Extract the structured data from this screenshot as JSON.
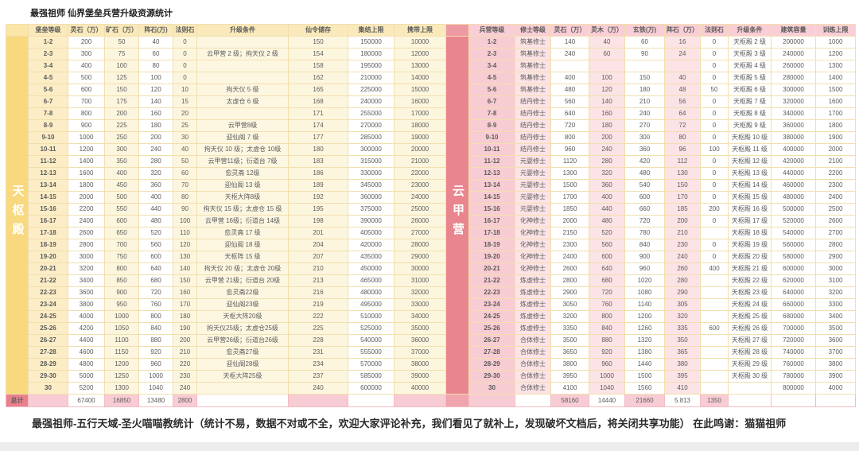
{
  "title": "最强祖师 仙界堡垒兵营升级资源统计",
  "footer": "最强祖师-五行天域-圣火喵喵教统计（统计不易，数据不对或不全，欢迎大家评论补充，我们看见了就补上，发现破坏文档后，将关闭共享功能）  在此鸣谢：猫猫祖师",
  "colors": {
    "fortress_accent": "#f8d97f",
    "fortress_cell": "#fdf6de",
    "camp_accent": "#e9858e",
    "camp_cell": "#fce3e6",
    "total_accent": "#e9818c"
  },
  "fortress": {
    "label": "天枢殿",
    "headers": [
      "堡垒等级",
      "灵石（万）",
      "矿石（万）",
      "阵石(万)",
      "法则石",
      "升级条件",
      "仙令储存",
      "集结上限",
      "携带上限"
    ],
    "rows": [
      [
        "1-2",
        "200",
        "50",
        "40",
        "0",
        "",
        "150",
        "150000",
        "10000"
      ],
      [
        "2-3",
        "300",
        "75",
        "60",
        "0",
        "云甲营 2 级；拘天仪 2 级",
        "154",
        "180000",
        "12000"
      ],
      [
        "3-4",
        "400",
        "100",
        "80",
        "0",
        "",
        "158",
        "195000",
        "13000"
      ],
      [
        "4-5",
        "500",
        "125",
        "100",
        "0",
        "",
        "162",
        "210000",
        "14000"
      ],
      [
        "5-6",
        "600",
        "150",
        "120",
        "10",
        "拘天仪 5 级",
        "165",
        "225000",
        "15000"
      ],
      [
        "6-7",
        "700",
        "175",
        "140",
        "15",
        "太虚仓 6 级",
        "168",
        "240000",
        "16000"
      ],
      [
        "7-8",
        "800",
        "200",
        "160",
        "20",
        "",
        "171",
        "255000",
        "17000"
      ],
      [
        "8-9",
        "900",
        "225",
        "180",
        "25",
        "云甲营8级",
        "174",
        "270000",
        "18000"
      ],
      [
        "9-10",
        "1000",
        "250",
        "200",
        "30",
        "迎仙阁 7 级",
        "177",
        "285000",
        "19000"
      ],
      [
        "10-11",
        "1200",
        "300",
        "240",
        "40",
        "拘天仪 10 级；太虚仓 10级",
        "180",
        "300000",
        "20000"
      ],
      [
        "11-12",
        "1400",
        "350",
        "280",
        "50",
        "云甲营11级；衍道台 7级",
        "183",
        "315000",
        "21000"
      ],
      [
        "12-13",
        "1600",
        "400",
        "320",
        "60",
        "愈灵斋 12级",
        "186",
        "330000",
        "22000"
      ],
      [
        "13-14",
        "1800",
        "450",
        "360",
        "70",
        "迎仙阁 13 级",
        "189",
        "345000",
        "23000"
      ],
      [
        "14-15",
        "2000",
        "500",
        "400",
        "80",
        "天枢大阵8级",
        "192",
        "360000",
        "24000"
      ],
      [
        "15-16",
        "2200",
        "550",
        "440",
        "90",
        "拘天仪 15 级；太虚仓 15 级",
        "195",
        "375000",
        "25000"
      ],
      [
        "16-17",
        "2400",
        "600",
        "480",
        "100",
        "云甲营 16级；衍道台 14级",
        "198",
        "390000",
        "26000"
      ],
      [
        "17-18",
        "2600",
        "650",
        "520",
        "110",
        "愈灵斋 17 级",
        "201",
        "405000",
        "27000"
      ],
      [
        "18-19",
        "2800",
        "700",
        "560",
        "120",
        "迎仙阁 18 级",
        "204",
        "420000",
        "28000"
      ],
      [
        "19-20",
        "3000",
        "750",
        "600",
        "130",
        "天枢阵 15 级",
        "207",
        "435000",
        "29000"
      ],
      [
        "20-21",
        "3200",
        "800",
        "640",
        "140",
        "拘天仪 20 级；太虚仓 20级",
        "210",
        "450000",
        "30000"
      ],
      [
        "21-22",
        "3400",
        "850",
        "680",
        "150",
        "云甲营 21级；衍道台 20级",
        "213",
        "465000",
        "31000"
      ],
      [
        "22-23",
        "3600",
        "900",
        "720",
        "160",
        "愈灵斋22级",
        "216",
        "480000",
        "32000"
      ],
      [
        "23-24",
        "3800",
        "950",
        "760",
        "170",
        "迎仙阁23级",
        "219",
        "495000",
        "33000"
      ],
      [
        "24-25",
        "4000",
        "1000",
        "800",
        "180",
        "天枢大阵20级",
        "222",
        "510000",
        "34000"
      ],
      [
        "25-26",
        "4200",
        "1050",
        "840",
        "190",
        "拘天仪25级；太虚仓25级",
        "225",
        "525000",
        "35000"
      ],
      [
        "26-27",
        "4400",
        "1100",
        "880",
        "200",
        "云甲营26级；衍道台26级",
        "228",
        "540000",
        "36000"
      ],
      [
        "27-28",
        "4600",
        "1150",
        "920",
        "210",
        "愈灵斋27级",
        "231",
        "555000",
        "37000"
      ],
      [
        "28-29",
        "4800",
        "1200",
        "960",
        "220",
        "迎仙阁28级",
        "234",
        "570000",
        "38000"
      ],
      [
        "29-30",
        "5000",
        "1250",
        "1000",
        "230",
        "天枢大阵25级",
        "237",
        "585000",
        "39000"
      ],
      [
        "30",
        "5200",
        "1300",
        "1040",
        "240",
        "",
        "240",
        "600000",
        "40000"
      ]
    ],
    "total_label": "总计",
    "totals": [
      "",
      "67400",
      "16850",
      "13480",
      "2800",
      "",
      "",
      "",
      ""
    ]
  },
  "camp": {
    "label": "云甲营",
    "headers": [
      "兵营等级",
      "修士等级",
      "灵石（万）",
      "灵木（万）",
      "玄铁(万)",
      "阵石（万）",
      "法则石",
      "升级条件",
      "建筑容量",
      "训练上限"
    ],
    "rows": [
      [
        "1-2",
        "筑基修士",
        "140",
        "40",
        "60",
        "16",
        "0",
        "天枢殿 2 级",
        "200000",
        "1000"
      ],
      [
        "2-3",
        "筑基修士",
        "240",
        "60",
        "90",
        "24",
        "0",
        "天枢殿 3 级",
        "240000",
        "1200"
      ],
      [
        "3-4",
        "筑基修士",
        "",
        "",
        "",
        "",
        "0",
        "天枢殿 4 级",
        "260000",
        "1300"
      ],
      [
        "4-5",
        "筑基修士",
        "400",
        "100",
        "150",
        "40",
        "0",
        "天枢殿 5 级",
        "280000",
        "1400"
      ],
      [
        "5-6",
        "筑基修士",
        "480",
        "120",
        "180",
        "48",
        "50",
        "天枢殿 6 级",
        "300000",
        "1500"
      ],
      [
        "6-7",
        "结丹修士",
        "560",
        "140",
        "210",
        "56",
        "0",
        "天枢殿 7 级",
        "320000",
        "1600"
      ],
      [
        "7-8",
        "结丹修士",
        "640",
        "160",
        "240",
        "64",
        "0",
        "天枢殿 8 级",
        "340000",
        "1700"
      ],
      [
        "8-9",
        "结丹修士",
        "720",
        "180",
        "270",
        "72",
        "0",
        "天枢殿 9 级",
        "360000",
        "1800"
      ],
      [
        "9-10",
        "结丹修士",
        "800",
        "200",
        "300",
        "80",
        "0",
        "天枢殿 10 级",
        "380000",
        "1900"
      ],
      [
        "10-11",
        "结丹修士",
        "960",
        "240",
        "360",
        "96",
        "100",
        "天枢殿 11 级",
        "400000",
        "2000"
      ],
      [
        "11-12",
        "元婴修士",
        "1120",
        "280",
        "420",
        "112",
        "0",
        "天枢殿 12 级",
        "420000",
        "2100"
      ],
      [
        "12-13",
        "元婴修士",
        "1300",
        "320",
        "480",
        "130",
        "0",
        "天枢殿 13 级",
        "440000",
        "2200"
      ],
      [
        "13-14",
        "元婴修士",
        "1500",
        "360",
        "540",
        "150",
        "0",
        "天枢殿 14 级",
        "460000",
        "2300"
      ],
      [
        "14-15",
        "元婴修士",
        "1700",
        "400",
        "600",
        "170",
        "0",
        "天枢殿 15 级",
        "480000",
        "2400"
      ],
      [
        "15-16",
        "元婴修士",
        "1850",
        "440",
        "660",
        "185",
        "200",
        "天枢殿 16 级",
        "500000",
        "2500"
      ],
      [
        "16-17",
        "化神修士",
        "2000",
        "480",
        "720",
        "200",
        "0",
        "天枢殿 17 级",
        "520000",
        "2600"
      ],
      [
        "17-18",
        "化神修士",
        "2150",
        "520",
        "780",
        "210",
        "",
        "天枢殿 18 级",
        "540000",
        "2700"
      ],
      [
        "18-19",
        "化神修士",
        "2300",
        "560",
        "840",
        "230",
        "0",
        "天枢殿 19 级",
        "560000",
        "2800"
      ],
      [
        "19-20",
        "化神修士",
        "2400",
        "600",
        "900",
        "240",
        "0",
        "天枢殿 20 级",
        "580000",
        "2900"
      ],
      [
        "20-21",
        "化神修士",
        "2600",
        "640",
        "960",
        "260",
        "400",
        "天枢殿 21 级",
        "600000",
        "3000"
      ],
      [
        "21-22",
        "炼虚修士",
        "2800",
        "680",
        "1020",
        "280",
        "",
        "天枢殿 22 级",
        "620000",
        "3100"
      ],
      [
        "22-23",
        "炼虚修士",
        "2900",
        "720",
        "1080",
        "290",
        "",
        "天枢殿 23 级",
        "640000",
        "3200"
      ],
      [
        "23-24",
        "炼虚修士",
        "3050",
        "760",
        "1140",
        "305",
        "",
        "天枢殿 24 级",
        "660000",
        "3300"
      ],
      [
        "24-25",
        "炼虚修士",
        "3200",
        "800",
        "1200",
        "320",
        "",
        "天枢殿 25 级",
        "680000",
        "3400"
      ],
      [
        "25-26",
        "炼虚修士",
        "3350",
        "840",
        "1260",
        "335",
        "600",
        "天枢殿 26 级",
        "700000",
        "3500"
      ],
      [
        "26-27",
        "合体修士",
        "3500",
        "880",
        "1320",
        "350",
        "",
        "天枢殿 27 级",
        "720000",
        "3600"
      ],
      [
        "27-28",
        "合体修士",
        "3650",
        "920",
        "1380",
        "365",
        "",
        "天枢殿 28 级",
        "740000",
        "3700"
      ],
      [
        "28-29",
        "合体修士",
        "3800",
        "960",
        "1440",
        "380",
        "",
        "天枢殿 29 级",
        "760000",
        "3800"
      ],
      [
        "29-30",
        "合体修士",
        "3950",
        "1000",
        "1500",
        "395",
        "",
        "天枢殿 30 级",
        "780000",
        "3900"
      ],
      [
        "30",
        "合体修士",
        "4100",
        "1040",
        "1560",
        "410",
        "",
        "",
        "800000",
        "4000"
      ]
    ],
    "totals": [
      "",
      "",
      "58160",
      "14440",
      "21660",
      "5.813",
      "1350",
      "",
      "",
      ""
    ]
  }
}
